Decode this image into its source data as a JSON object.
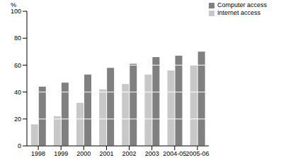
{
  "chart_data": {
    "type": "bar",
    "ylabel": "%",
    "categories": [
      "1998",
      "1999",
      "2000",
      "2001",
      "2002",
      "2003",
      "2004-05",
      "2005-06"
    ],
    "series": [
      {
        "name": "Internet access",
        "color": "#c8c8c8",
        "values": [
          16,
          22,
          32,
          42,
          46,
          53,
          56,
          60
        ]
      },
      {
        "name": "Computer access",
        "color": "#808080",
        "values": [
          44,
          47,
          53,
          58,
          61,
          66,
          67,
          70
        ]
      }
    ],
    "ylim": [
      0,
      100
    ],
    "yticks": [
      0,
      20,
      40,
      60,
      80,
      100
    ],
    "grid": true,
    "legend": "top-right"
  }
}
